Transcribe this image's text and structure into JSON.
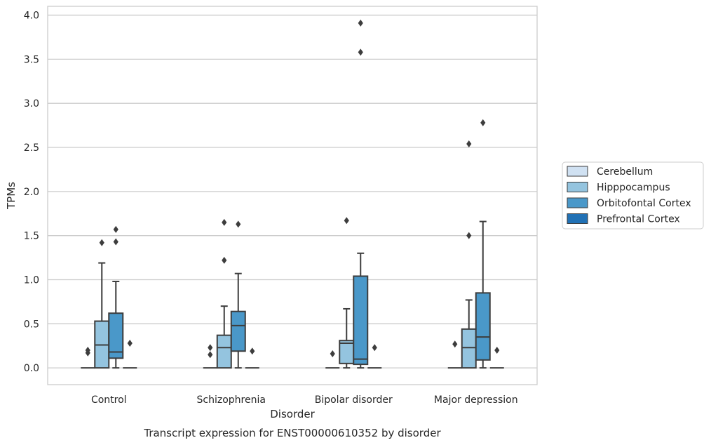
{
  "chart_data": {
    "type": "box",
    "title": "",
    "caption": "Transcript expression for ENST00000610352 by disorder",
    "xlabel": "Disorder",
    "ylabel": "TPMs",
    "ylim": [
      -0.19,
      4.1
    ],
    "yticks": [
      "0.0",
      "0.5",
      "1.0",
      "1.5",
      "2.0",
      "2.5",
      "3.0",
      "3.5",
      "4.0"
    ],
    "ytick_values": [
      0,
      0.5,
      1,
      1.5,
      2,
      2.5,
      3,
      3.5,
      4
    ],
    "grid": "horizontal",
    "legend_position": "right",
    "categories": [
      "Control",
      "Schizophrenia",
      "Bipolar disorder",
      "Major depression"
    ],
    "series": [
      {
        "name": "Cerebellum",
        "color": "#d0e1f2",
        "boxes": [
          {
            "q1": 0,
            "median": 0,
            "q3": 0,
            "whisker_low": 0,
            "whisker_high": 0,
            "outliers": [
              0.17,
              0.2
            ]
          },
          {
            "q1": 0,
            "median": 0,
            "q3": 0,
            "whisker_low": 0,
            "whisker_high": 0,
            "outliers": [
              0.15,
              0.23
            ]
          },
          {
            "q1": 0,
            "median": 0,
            "q3": 0,
            "whisker_low": 0,
            "whisker_high": 0,
            "outliers": [
              0.16
            ]
          },
          {
            "q1": 0,
            "median": 0,
            "q3": 0,
            "whisker_low": 0,
            "whisker_high": 0,
            "outliers": [
              0.27
            ]
          }
        ]
      },
      {
        "name": "Hipppocampus",
        "color": "#94c4df",
        "boxes": [
          {
            "q1": 0,
            "median": 0.26,
            "q3": 0.53,
            "whisker_low": 0,
            "whisker_high": 1.19,
            "outliers": [
              1.42
            ]
          },
          {
            "q1": 0,
            "median": 0.23,
            "q3": 0.37,
            "whisker_low": 0,
            "whisker_high": 0.7,
            "outliers": [
              1.22,
              1.65
            ]
          },
          {
            "q1": 0.05,
            "median": 0.28,
            "q3": 0.31,
            "whisker_low": 0,
            "whisker_high": 0.67,
            "outliers": [
              1.67
            ]
          },
          {
            "q1": 0,
            "median": 0.23,
            "q3": 0.44,
            "whisker_low": 0,
            "whisker_high": 0.77,
            "outliers": [
              1.5,
              2.54
            ]
          }
        ]
      },
      {
        "name": "Orbitofontal Cortex",
        "color": "#4a98c9",
        "boxes": [
          {
            "q1": 0.11,
            "median": 0.18,
            "q3": 0.62,
            "whisker_low": 0,
            "whisker_high": 0.98,
            "outliers": [
              1.43,
              1.57
            ]
          },
          {
            "q1": 0.19,
            "median": 0.48,
            "q3": 0.64,
            "whisker_low": 0,
            "whisker_high": 1.07,
            "outliers": [
              1.63
            ]
          },
          {
            "q1": 0.04,
            "median": 0.1,
            "q3": 1.04,
            "whisker_low": 0,
            "whisker_high": 1.3,
            "outliers": [
              3.58,
              3.91
            ]
          },
          {
            "q1": 0.09,
            "median": 0.35,
            "q3": 0.85,
            "whisker_low": 0,
            "whisker_high": 1.66,
            "outliers": [
              2.78
            ]
          }
        ]
      },
      {
        "name": "Prefrontal Cortex",
        "color": "#2171b5",
        "boxes": [
          {
            "q1": 0,
            "median": 0,
            "q3": 0,
            "whisker_low": 0,
            "whisker_high": 0,
            "outliers": [
              0.28
            ]
          },
          {
            "q1": 0,
            "median": 0,
            "q3": 0,
            "whisker_low": 0,
            "whisker_high": 0,
            "outliers": [
              0.19
            ]
          },
          {
            "q1": 0,
            "median": 0,
            "q3": 0,
            "whisker_low": 0,
            "whisker_high": 0,
            "outliers": [
              0.23
            ]
          },
          {
            "q1": 0,
            "median": 0,
            "q3": 0,
            "whisker_low": 0,
            "whisker_high": 0,
            "outliers": [
              0.2
            ]
          }
        ]
      }
    ]
  }
}
